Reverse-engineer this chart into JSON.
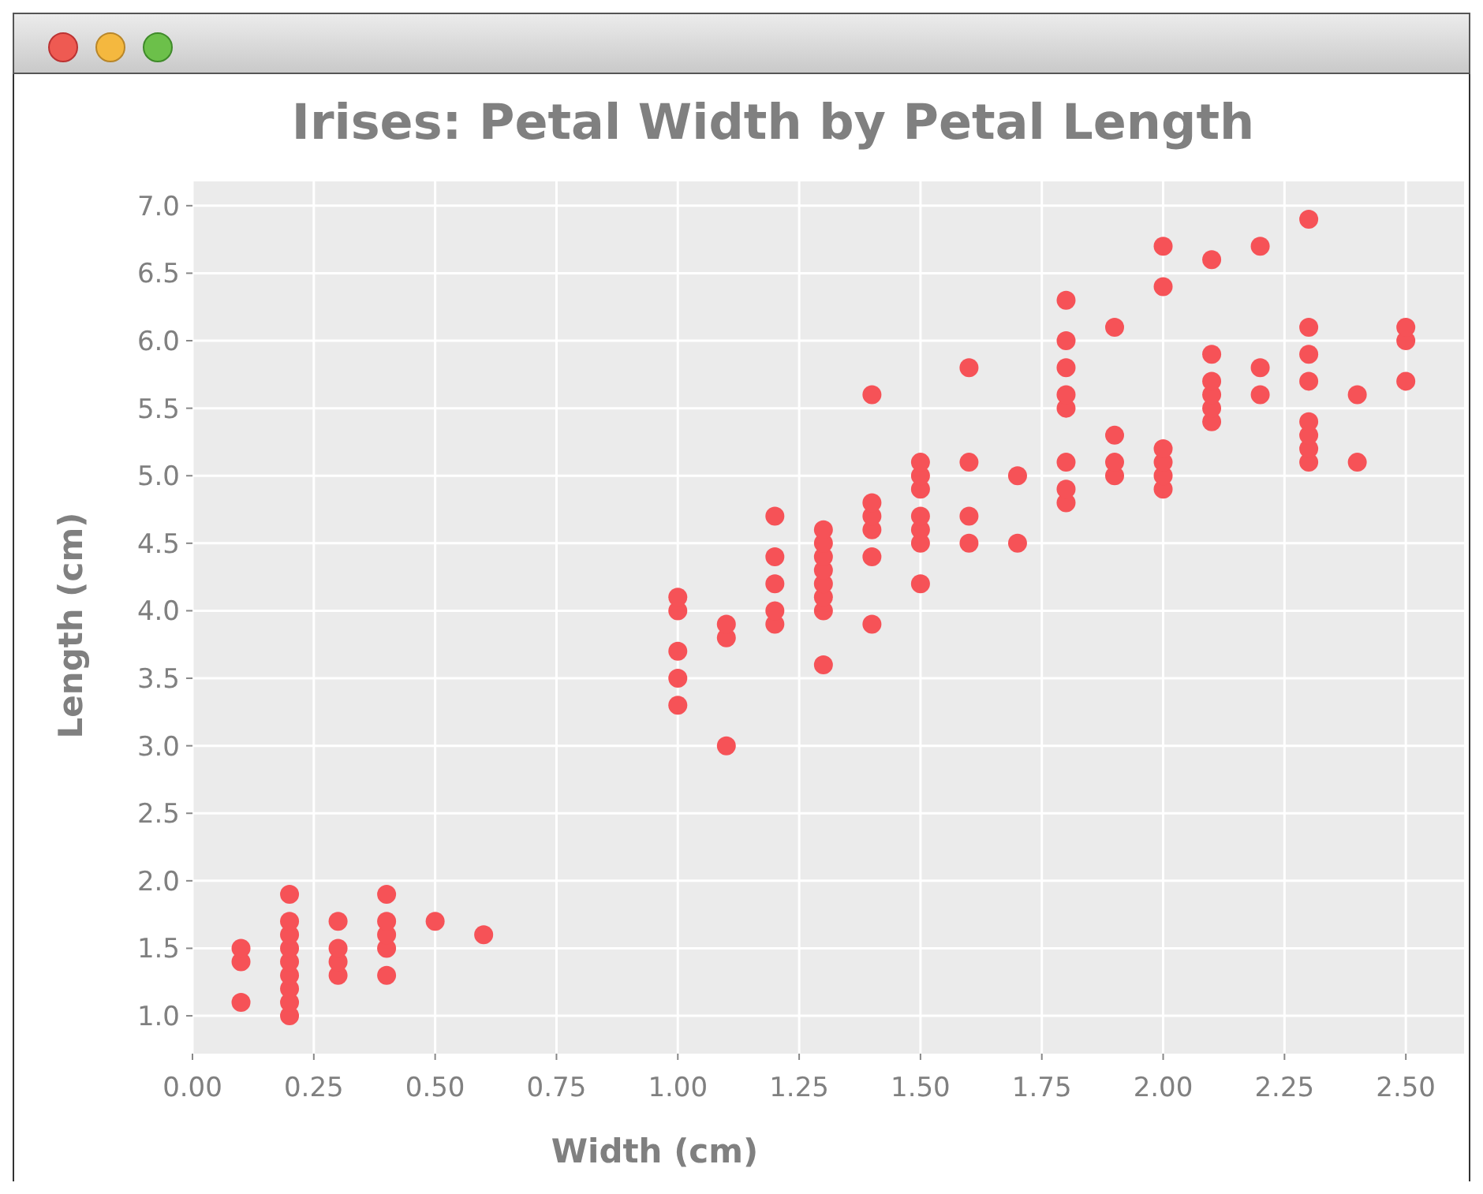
{
  "chart_data": {
    "type": "scatter",
    "title": "Irises: Petal Width by Petal Length",
    "xlabel": "Width (cm)",
    "ylabel": "Length (cm)",
    "xlim": [
      0,
      2.62
    ],
    "ylim": [
      0.72,
      7.18
    ],
    "xticks": [
      {
        "value": 0,
        "label": "0.00"
      },
      {
        "value": 0.25,
        "label": "0.25"
      },
      {
        "value": 0.5,
        "label": "0.50"
      },
      {
        "value": 0.75,
        "label": "0.75"
      },
      {
        "value": 1,
        "label": "1.00"
      },
      {
        "value": 1.25,
        "label": "1.25"
      },
      {
        "value": 1.5,
        "label": "1.50"
      },
      {
        "value": 1.75,
        "label": "1.75"
      },
      {
        "value": 2,
        "label": "2.00"
      },
      {
        "value": 2.25,
        "label": "2.25"
      },
      {
        "value": 2.5,
        "label": "2.50"
      }
    ],
    "yticks": [
      {
        "value": 1,
        "label": "1.0"
      },
      {
        "value": 1.5,
        "label": "1.5"
      },
      {
        "value": 2,
        "label": "2.0"
      },
      {
        "value": 2.5,
        "label": "2.5"
      },
      {
        "value": 3,
        "label": "3.0"
      },
      {
        "value": 3.5,
        "label": "3.5"
      },
      {
        "value": 4,
        "label": "4.0"
      },
      {
        "value": 4.5,
        "label": "4.5"
      },
      {
        "value": 5,
        "label": "5.0"
      },
      {
        "value": 5.5,
        "label": "5.5"
      },
      {
        "value": 6,
        "label": "6.0"
      },
      {
        "value": 6.5,
        "label": "6.5"
      },
      {
        "value": 7,
        "label": "7.0"
      }
    ],
    "grid": true,
    "marker": "circle",
    "series": [
      {
        "color": "#f65257",
        "x": [
          0.1,
          0.1,
          0.1,
          0.2,
          0.2,
          0.2,
          0.2,
          0.2,
          0.2,
          0.2,
          0.2,
          0.2,
          0.3,
          0.3,
          0.3,
          0.3,
          0.4,
          0.4,
          0.4,
          0.4,
          0.4,
          0.5,
          0.6,
          1.0,
          1.0,
          1.0,
          1.0,
          1.0,
          1.1,
          1.1,
          1.1,
          1.2,
          1.2,
          1.2,
          1.2,
          1.2,
          1.3,
          1.3,
          1.3,
          1.3,
          1.3,
          1.3,
          1.3,
          1.3,
          1.4,
          1.4,
          1.4,
          1.4,
          1.4,
          1.4,
          1.5,
          1.5,
          1.5,
          1.5,
          1.5,
          1.5,
          1.5,
          1.6,
          1.6,
          1.6,
          1.6,
          1.7,
          1.7,
          1.8,
          1.8,
          1.8,
          1.8,
          1.8,
          1.8,
          1.8,
          1.8,
          1.9,
          1.9,
          1.9,
          1.9,
          2.0,
          2.0,
          2.0,
          2.0,
          2.0,
          2.0,
          2.1,
          2.1,
          2.1,
          2.1,
          2.1,
          2.1,
          2.2,
          2.2,
          2.2,
          2.3,
          2.3,
          2.3,
          2.3,
          2.3,
          2.3,
          2.3,
          2.3,
          2.4,
          2.4,
          2.5,
          2.5,
          2.5
        ],
        "values": [
          1.1,
          1.4,
          1.5,
          1.0,
          1.1,
          1.2,
          1.3,
          1.4,
          1.5,
          1.6,
          1.7,
          1.9,
          1.3,
          1.4,
          1.5,
          1.7,
          1.3,
          1.5,
          1.6,
          1.7,
          1.9,
          1.7,
          1.6,
          3.3,
          3.5,
          3.7,
          4.0,
          4.1,
          3.0,
          3.8,
          3.9,
          3.9,
          4.0,
          4.2,
          4.4,
          4.7,
          3.6,
          4.0,
          4.1,
          4.2,
          4.3,
          4.4,
          4.5,
          4.6,
          3.9,
          4.4,
          4.6,
          4.7,
          4.8,
          5.6,
          4.2,
          4.5,
          4.6,
          4.7,
          4.9,
          5.0,
          5.1,
          4.5,
          4.7,
          5.1,
          5.8,
          4.5,
          5.0,
          4.8,
          4.9,
          5.1,
          5.5,
          5.6,
          5.8,
          6.0,
          6.3,
          5.0,
          5.1,
          5.3,
          6.1,
          4.9,
          5.0,
          5.1,
          5.2,
          6.4,
          6.7,
          5.4,
          5.5,
          5.6,
          5.7,
          5.9,
          6.6,
          5.6,
          5.8,
          6.7,
          5.1,
          5.2,
          5.3,
          5.4,
          5.7,
          5.9,
          6.1,
          6.9,
          5.1,
          5.6,
          5.7,
          6.0,
          6.1
        ]
      }
    ]
  }
}
